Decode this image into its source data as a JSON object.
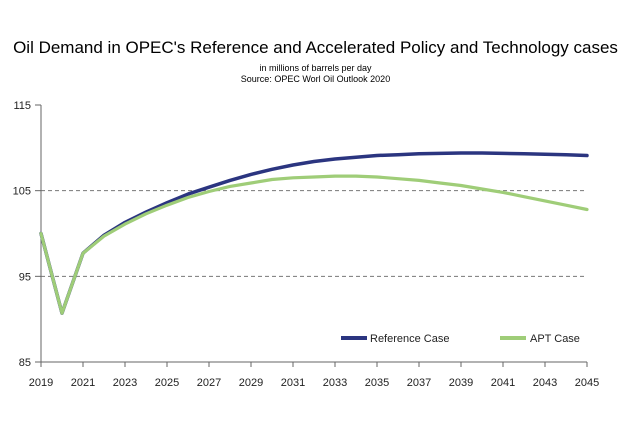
{
  "chart_data": {
    "type": "line",
    "title": "Oil Demand in OPEC's Reference and Accelerated Policy and Technology cases",
    "subtitle": "in millions of barrels per day",
    "source": "Source: OPEC Worl Oil Outlook 2020",
    "xlabel": "",
    "ylabel": "",
    "xlim": [
      2019,
      2045
    ],
    "ylim": [
      85,
      115
    ],
    "x_ticks": [
      2019,
      2021,
      2023,
      2025,
      2027,
      2029,
      2031,
      2033,
      2035,
      2037,
      2039,
      2041,
      2043,
      2045
    ],
    "y_ticks": [
      85,
      95,
      105,
      115
    ],
    "grid": "dashed horizontal at 95 and 105",
    "legend_position": "bottom-right",
    "series": [
      {
        "name": "Reference Case",
        "color": "#2b3580",
        "x": [
          2019,
          2020,
          2021,
          2022,
          2023,
          2024,
          2025,
          2026,
          2027,
          2028,
          2029,
          2030,
          2031,
          2032,
          2033,
          2034,
          2035,
          2036,
          2037,
          2038,
          2039,
          2040,
          2041,
          2042,
          2043,
          2044,
          2045
        ],
        "values": [
          100.0,
          90.7,
          97.7,
          99.8,
          101.3,
          102.5,
          103.6,
          104.6,
          105.4,
          106.2,
          106.9,
          107.5,
          108.0,
          108.4,
          108.7,
          108.9,
          109.1,
          109.2,
          109.3,
          109.35,
          109.4,
          109.4,
          109.35,
          109.3,
          109.25,
          109.2,
          109.1
        ]
      },
      {
        "name": "APT Case",
        "color": "#9fcd78",
        "x": [
          2019,
          2020,
          2021,
          2022,
          2023,
          2024,
          2025,
          2026,
          2027,
          2028,
          2029,
          2030,
          2031,
          2032,
          2033,
          2034,
          2035,
          2036,
          2037,
          2038,
          2039,
          2040,
          2041,
          2042,
          2043,
          2044,
          2045
        ],
        "values": [
          100.0,
          90.7,
          97.7,
          99.7,
          101.1,
          102.3,
          103.3,
          104.2,
          104.9,
          105.5,
          105.9,
          106.3,
          106.5,
          106.6,
          106.7,
          106.7,
          106.6,
          106.4,
          106.2,
          105.9,
          105.6,
          105.2,
          104.8,
          104.3,
          103.8,
          103.3,
          102.8
        ]
      }
    ]
  }
}
